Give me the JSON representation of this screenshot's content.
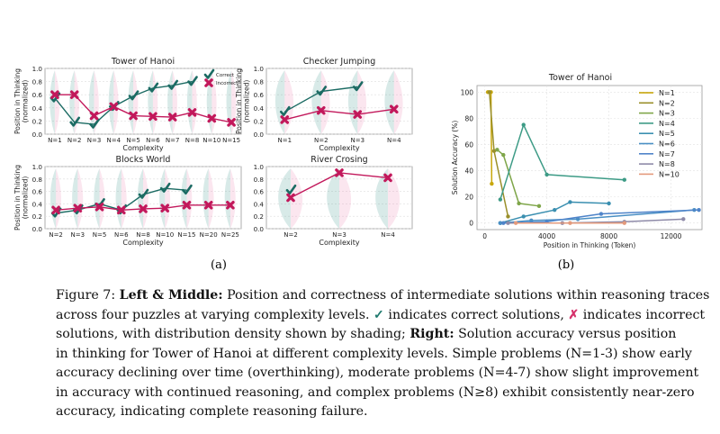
{
  "figure_labels": {
    "a": "(a)",
    "b": "(b)"
  },
  "colors": {
    "correct": "#1b6b63",
    "incorrect": "#c2185b",
    "correct_fill": "#4f9e96",
    "incorrect_fill": "#ef8fb4"
  },
  "caption": {
    "fig_label": "Figure 7:",
    "bold1": "Left & Middle:",
    "t1": " Position and correctness of intermediate solutions within reasoning traces",
    "t2": "across four puzzles at varying complexity levels.",
    "check_glyph": "✓",
    "t3": " indicates correct solutions,",
    "cross_glyph": "✗",
    "t4": " indicates incorrect",
    "t5": "solutions, with distribution density shown by shading;",
    "bold2": "Right:",
    "t6": " Solution accuracy versus position",
    "t7": "in thinking for Tower of Hanoi at different complexity levels. Simple problems (N=1-3) show early",
    "t8": "accuracy declining over time (overthinking), moderate problems (N=4-7) show slight improvement",
    "t9": "in accuracy with continued reasoning, and complex problems (N≥8) exhibit consistently near-zero",
    "t10": "accuracy, indicating complete reasoning failure."
  },
  "chart_data": [
    {
      "type": "line",
      "title": "Tower of Hanoi",
      "xlabel": "Complexity",
      "ylabel": "Position in Thinking (normalized)",
      "categories": [
        "N=1",
        "N=2",
        "N=3",
        "N=4",
        "N=5",
        "N=6",
        "N=7",
        "N=8",
        "N=10",
        "N=15"
      ],
      "ylim": [
        0,
        1.0
      ],
      "yticks": [
        "0.0",
        "0.2",
        "0.4",
        "0.6",
        "0.8",
        "1.0"
      ],
      "legend": {
        "position": "top-right",
        "entries": [
          "Correct",
          "Incorrect"
        ]
      },
      "series": [
        {
          "name": "Correct",
          "values": [
            0.55,
            0.18,
            0.15,
            0.42,
            0.58,
            0.7,
            0.74,
            0.8,
            null,
            null
          ]
        },
        {
          "name": "Incorrect",
          "values": [
            0.6,
            0.6,
            0.28,
            0.42,
            0.28,
            0.27,
            0.26,
            0.33,
            0.24,
            0.18
          ]
        }
      ]
    },
    {
      "type": "line",
      "title": "Checker Jumping",
      "xlabel": "Complexity",
      "ylabel": "Position in Thinking (normalized)",
      "categories": [
        "N=1",
        "N=2",
        "N=3",
        "N=4"
      ],
      "ylim": [
        0,
        1.0
      ],
      "yticks": [
        "0.0",
        "0.2",
        "0.4",
        "0.6",
        "0.8",
        "1.0"
      ],
      "series": [
        {
          "name": "Correct",
          "values": [
            0.34,
            0.65,
            0.72,
            null
          ]
        },
        {
          "name": "Incorrect",
          "values": [
            0.22,
            0.36,
            0.3,
            0.38
          ]
        }
      ]
    },
    {
      "type": "line",
      "title": "Blocks World",
      "xlabel": "Complexity",
      "ylabel": "Position in Thinking (normalized)",
      "categories": [
        "N=2",
        "N=3",
        "N=5",
        "N=6",
        "N=8",
        "N=10",
        "N=15",
        "N=20",
        "N=25"
      ],
      "ylim": [
        0,
        1.0
      ],
      "yticks": [
        "0.0",
        "0.2",
        "0.4",
        "0.6",
        "0.8",
        "1.0"
      ],
      "series": [
        {
          "name": "Correct",
          "values": [
            0.25,
            0.3,
            0.4,
            0.3,
            0.55,
            0.65,
            0.62,
            null,
            null
          ]
        },
        {
          "name": "Incorrect",
          "values": [
            0.3,
            0.33,
            0.35,
            0.3,
            0.32,
            0.33,
            0.38,
            0.38,
            0.38
          ]
        }
      ]
    },
    {
      "type": "line",
      "title": "River Crosing",
      "xlabel": "Complexity",
      "ylabel": "",
      "categories": [
        "N=2",
        "N=3",
        "N=4"
      ],
      "ylim": [
        0,
        1.0
      ],
      "yticks": [
        "0.0",
        "0.2",
        "0.4",
        "0.6",
        "0.8",
        "1.0"
      ],
      "series": [
        {
          "name": "Correct",
          "values": [
            0.62,
            null,
            null
          ]
        },
        {
          "name": "Incorrect",
          "values": [
            0.5,
            0.9,
            0.82
          ]
        }
      ]
    },
    {
      "type": "line",
      "title": "Tower of Hanoi",
      "xlabel": "Position in Thinking (Token)",
      "ylabel": "Solution Accuracy (%)",
      "xlim": [
        -500,
        14000
      ],
      "ylim": [
        -5,
        105
      ],
      "xticks": [
        0,
        4000,
        8000,
        12000
      ],
      "yticks": [
        0,
        20,
        40,
        60,
        80,
        100
      ],
      "legend": {
        "position": "top-right"
      },
      "series": [
        {
          "name": "N=1",
          "color": "#c8a70c",
          "points": [
            [
              200,
              100
            ],
            [
              400,
              100
            ],
            [
              450,
              30
            ]
          ]
        },
        {
          "name": "N=2",
          "color": "#9a8f2a",
          "points": [
            [
              300,
              100
            ],
            [
              600,
              55
            ],
            [
              1500,
              5
            ]
          ]
        },
        {
          "name": "N=3",
          "color": "#7fa64a",
          "points": [
            [
              800,
              56
            ],
            [
              1200,
              52
            ],
            [
              2200,
              15
            ],
            [
              3500,
              13
            ]
          ]
        },
        {
          "name": "N=4",
          "color": "#3d9b86",
          "points": [
            [
              1000,
              18
            ],
            [
              2500,
              75
            ],
            [
              4000,
              37
            ],
            [
              9000,
              33
            ]
          ]
        },
        {
          "name": "N=5",
          "color": "#3a8fb0",
          "points": [
            [
              1000,
              0
            ],
            [
              2500,
              5
            ],
            [
              4500,
              10
            ],
            [
              5500,
              16
            ],
            [
              8000,
              15
            ]
          ]
        },
        {
          "name": "N=6",
          "color": "#4a8fc4",
          "points": [
            [
              1000,
              0
            ],
            [
              3000,
              2
            ],
            [
              6000,
              3
            ],
            [
              13500,
              10
            ]
          ]
        },
        {
          "name": "N=7",
          "color": "#4f84c9",
          "points": [
            [
              1200,
              0
            ],
            [
              4000,
              1
            ],
            [
              7500,
              7
            ],
            [
              13800,
              10
            ]
          ]
        },
        {
          "name": "N=8",
          "color": "#8e8aa8",
          "points": [
            [
              1500,
              0
            ],
            [
              5000,
              0
            ],
            [
              9000,
              1
            ],
            [
              12800,
              3
            ]
          ]
        },
        {
          "name": "N=10",
          "color": "#e39a7c",
          "points": [
            [
              2000,
              0
            ],
            [
              5500,
              0
            ],
            [
              9000,
              0
            ]
          ]
        }
      ]
    }
  ]
}
